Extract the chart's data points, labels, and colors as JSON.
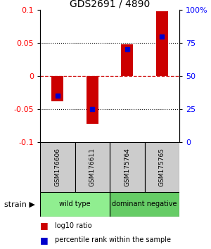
{
  "title": "GDS2691 / 4890",
  "samples": [
    "GSM176606",
    "GSM176611",
    "GSM175764",
    "GSM175765"
  ],
  "log10_ratio": [
    -0.038,
    -0.072,
    0.048,
    0.098
  ],
  "percentile_rank": [
    35,
    25,
    70,
    80
  ],
  "ylim_left": [
    -0.1,
    0.1
  ],
  "ylim_right": [
    0,
    100
  ],
  "yticks_left": [
    -0.1,
    -0.05,
    0,
    0.05,
    0.1
  ],
  "ytick_labels_left": [
    "-0.1",
    "-0.05",
    "0",
    "0.05",
    "0.1"
  ],
  "yticks_right": [
    0,
    25,
    50,
    75,
    100
  ],
  "ytick_labels_right": [
    "0",
    "25",
    "50",
    "75",
    "100%"
  ],
  "groups": [
    {
      "label": "wild type",
      "samples": [
        0,
        1
      ],
      "color": "#90EE90"
    },
    {
      "label": "dominant negative",
      "samples": [
        2,
        3
      ],
      "color": "#66CC66"
    }
  ],
  "bar_color": "#CC0000",
  "blue_color": "#0000CC",
  "zero_line_color": "#CC0000",
  "bar_width": 0.35,
  "blue_marker_size": 5,
  "background_label": "#CCCCCC",
  "strain_label": "strain",
  "legend_ratio": "log10 ratio",
  "legend_pct": "percentile rank within the sample"
}
